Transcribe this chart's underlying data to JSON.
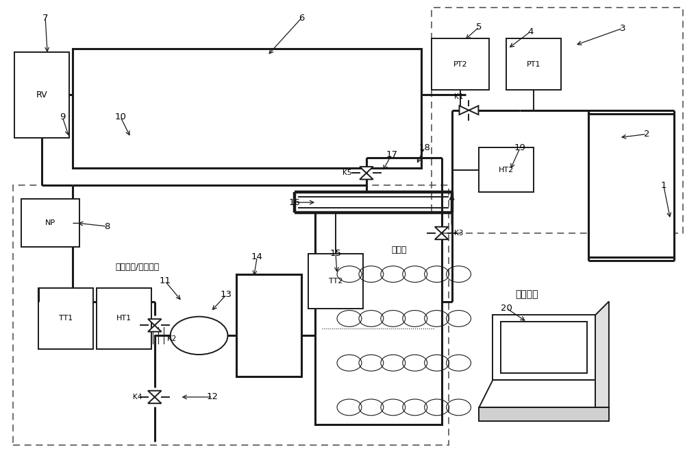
{
  "bg": "#ffffff",
  "lc": "#1a1a1a",
  "dc": "#555555",
  "fw": 10.0,
  "fh": 6.62,
  "dpi": 100,
  "labels": {
    "RV": "RV",
    "NP": "NP",
    "TT1": "TT1",
    "HT1": "HT1",
    "TT2": "TT2",
    "PT2": "PT2",
    "PT1": "PT1",
    "HT2": "HT2",
    "K1": "K1",
    "K2": "K2",
    "K3": "K3",
    "K4": "K4",
    "K5": "K5",
    "chong": "充氮模块",
    "dan": "氮气干燥/加热模块",
    "window": "观察窗"
  }
}
